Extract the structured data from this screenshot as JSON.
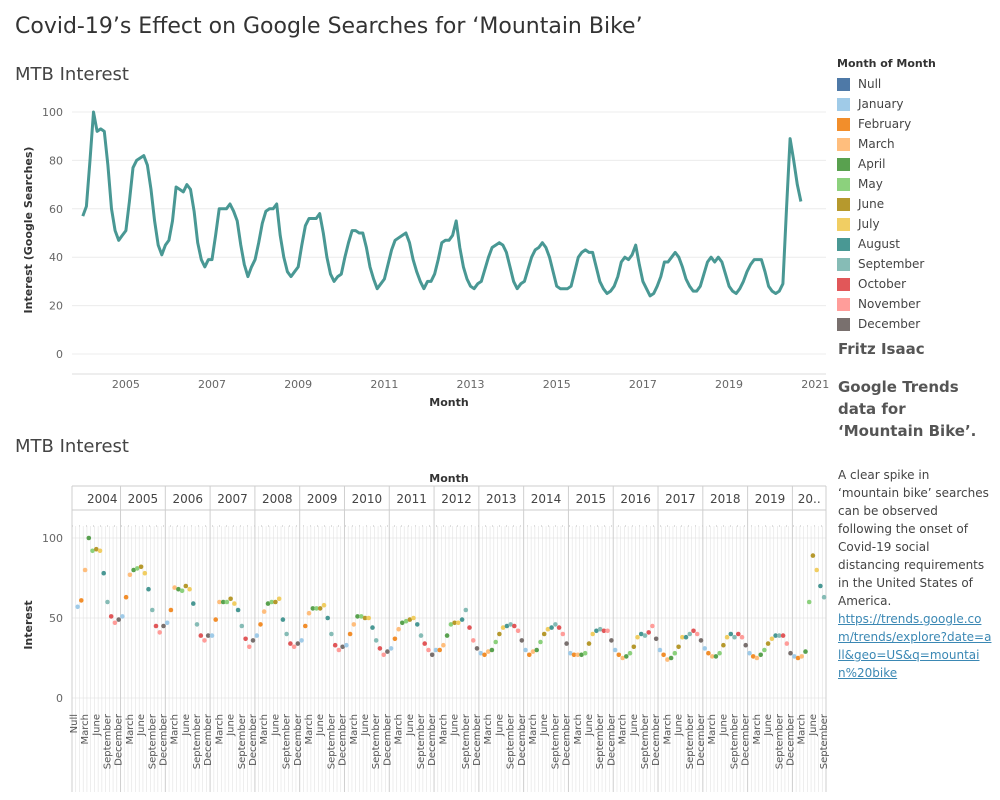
{
  "dashboard_title": "Covid-19’s Effect on Google Searches for ‘Mountain Bike’",
  "legend": {
    "title": "Month of Month",
    "items": [
      {
        "label": "Null",
        "color": "#4e79a7"
      },
      {
        "label": "January",
        "color": "#a0cbe8"
      },
      {
        "label": "February",
        "color": "#f28e2b"
      },
      {
        "label": "March",
        "color": "#ffbe7d"
      },
      {
        "label": "April",
        "color": "#59a14f"
      },
      {
        "label": "May",
        "color": "#8cd17d"
      },
      {
        "label": "June",
        "color": "#b6992d"
      },
      {
        "label": "July",
        "color": "#f1ce63"
      },
      {
        "label": "August",
        "color": "#499894"
      },
      {
        "label": "September",
        "color": "#86bcb6"
      },
      {
        "label": "October",
        "color": "#e15759"
      },
      {
        "label": "November",
        "color": "#ff9d9a"
      },
      {
        "label": "December",
        "color": "#79706e"
      }
    ]
  },
  "side": {
    "author": "Fritz Isaac",
    "heading": "Google Trends data for ‘Mountain Bike’.",
    "description": "A clear spike in ‘mountain bike’ searches can be observed following the onset of Covid-19 social distancing requirements in the United States of America.",
    "link": "https://trends.google.com/trends/explore?date=all&geo=US&q=mountain%20bike"
  },
  "chart_data": [
    {
      "type": "line",
      "title": "MTB Interest",
      "xlabel": "Month",
      "ylabel": "Interest (Google Searches)",
      "ylim": [
        0,
        100
      ],
      "yticks": [
        0,
        20,
        40,
        60,
        80,
        100
      ],
      "xticks": [
        "2005",
        "2007",
        "2009",
        "2011",
        "2013",
        "2015",
        "2017",
        "2019",
        "2021"
      ],
      "line_color": "#499894",
      "series": [
        {
          "start": "2004-01",
          "end": "2020-08",
          "values": [
            57,
            61,
            80,
            100,
            92,
            93,
            92,
            78,
            60,
            51,
            47,
            49,
            51,
            63,
            77,
            80,
            81,
            82,
            78,
            68,
            55,
            45,
            41,
            45,
            47,
            55,
            69,
            68,
            67,
            70,
            68,
            59,
            46,
            39,
            36,
            39,
            39,
            49,
            60,
            60,
            60,
            62,
            59,
            55,
            45,
            37,
            32,
            36,
            39,
            46,
            54,
            59,
            60,
            60,
            62,
            49,
            40,
            34,
            32,
            34,
            36,
            45,
            53,
            56,
            56,
            56,
            58,
            50,
            40,
            33,
            30,
            32,
            33,
            40,
            46,
            51,
            51,
            50,
            50,
            44,
            36,
            31,
            27,
            29,
            31,
            37,
            43,
            47,
            48,
            49,
            50,
            46,
            39,
            34,
            30,
            27,
            30,
            30,
            33,
            39,
            46,
            47,
            47,
            49,
            55,
            44,
            36,
            31,
            28,
            27,
            29,
            30,
            35,
            40,
            44,
            45,
            46,
            45,
            42,
            36,
            30,
            27,
            29,
            30,
            35,
            40,
            43,
            44,
            46,
            44,
            40,
            34,
            28,
            27,
            27,
            27,
            28,
            34,
            40,
            42,
            43,
            42,
            42,
            36,
            30,
            27,
            25,
            26,
            28,
            32,
            38,
            40,
            39,
            41,
            45,
            37,
            30,
            27,
            24,
            25,
            28,
            32,
            38,
            38,
            40,
            42,
            40,
            36,
            31,
            28,
            26,
            26,
            28,
            33,
            38,
            40,
            38,
            40,
            38,
            33,
            28,
            26,
            25,
            27,
            30,
            34,
            37,
            39,
            39,
            39,
            34,
            28,
            26,
            25,
            26,
            29,
            60,
            89,
            80,
            70,
            63
          ]
        }
      ]
    },
    {
      "type": "scatter",
      "title": "MTB Interest",
      "xlabel": "Month",
      "ylabel": "Interest",
      "ylim": [
        0,
        100
      ],
      "yticks": [
        0,
        50,
        100
      ],
      "years": [
        "2004",
        "2005",
        "2006",
        "2007",
        "2008",
        "2009",
        "2010",
        "2011",
        "2012",
        "2013",
        "2014",
        "2015",
        "2016",
        "2017",
        "2018",
        "2019",
        "20.."
      ],
      "month_labels": [
        "March",
        "June",
        "September",
        "December"
      ],
      "null_label": "Null",
      "series_note": "same monthly values as line chart, colored by month"
    }
  ]
}
